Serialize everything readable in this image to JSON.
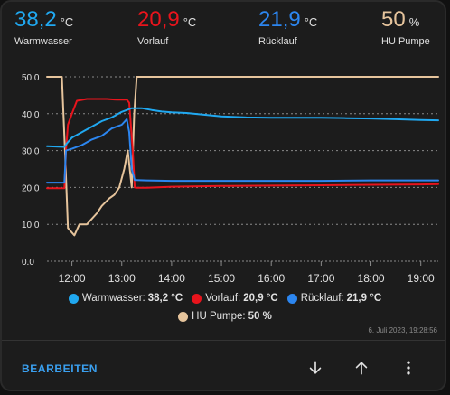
{
  "stats": [
    {
      "value": "38,2",
      "unit": "°C",
      "name": "Warmwasser",
      "color": "#20a8f0"
    },
    {
      "value": "20,9",
      "unit": "°C",
      "name": "Vorlauf",
      "color": "#e8141c"
    },
    {
      "value": "21,9",
      "unit": "°C",
      "name": "Rücklauf",
      "color": "#2c86f0"
    },
    {
      "value": "50",
      "unit": "%",
      "name": "HU Pumpe",
      "color": "#e6c49c"
    }
  ],
  "legend": [
    {
      "name": "Warmwasser:",
      "value": "38,2 °C",
      "color": "#20a8f0"
    },
    {
      "name": "Vorlauf:",
      "value": "20,9 °C",
      "color": "#e8141c"
    },
    {
      "name": "Rücklauf:",
      "value": "21,9 °C",
      "color": "#2c86f0"
    },
    {
      "name": "HU Pumpe:",
      "value": "50 %",
      "color": "#e6c49c"
    }
  ],
  "timestamp": "6. Juli 2023, 19:28:56",
  "footer": {
    "edit_label": "BEARBEITEN",
    "down_icon": "arrow-down-icon",
    "up_icon": "arrow-up-icon",
    "more_icon": "more-vertical-icon"
  },
  "chart_data": {
    "type": "line",
    "xlim": [
      11.5,
      19.35
    ],
    "ylim": [
      0,
      50
    ],
    "x_ticks": [
      12,
      13,
      14,
      15,
      16,
      17,
      18,
      19
    ],
    "x_tick_labels": [
      "12:00",
      "13:00",
      "14:00",
      "15:00",
      "16:00",
      "17:00",
      "18:00",
      "19:00"
    ],
    "y_ticks": [
      0,
      10,
      20,
      30,
      40,
      50
    ],
    "y_tick_labels": [
      "0.0",
      "10.0",
      "20.0",
      "30.0",
      "40.0",
      "50.0"
    ],
    "grid": true,
    "legend_position": "bottom",
    "series": [
      {
        "name": "HU Pumpe",
        "color": "#e6c49c",
        "x": [
          11.5,
          11.8,
          11.86,
          11.92,
          12.05,
          12.15,
          12.3,
          12.5,
          12.6,
          12.75,
          12.85,
          12.95,
          13.05,
          13.12,
          13.2,
          13.25,
          13.3,
          19.35
        ],
        "y": [
          50,
          50,
          30,
          9,
          7,
          10,
          10,
          13,
          15,
          17,
          18,
          20,
          25,
          30,
          20,
          40,
          50,
          50
        ]
      },
      {
        "name": "Vorlauf",
        "color": "#e8141c",
        "x": [
          11.5,
          11.85,
          11.88,
          11.92,
          12.0,
          12.1,
          12.3,
          12.5,
          12.7,
          12.9,
          13.1,
          13.15,
          13.22,
          13.26,
          13.3,
          13.5,
          14.0,
          15.0,
          16.0,
          17.0,
          18.0,
          19.0,
          19.35
        ],
        "y": [
          19.8,
          19.8,
          30,
          37,
          40,
          43.5,
          44,
          44,
          44,
          43.8,
          43.8,
          43,
          30,
          20,
          19.9,
          19.9,
          20.2,
          20.4,
          20.5,
          20.6,
          20.7,
          20.8,
          20.9
        ]
      },
      {
        "name": "Rücklauf",
        "color": "#2c86f0",
        "x": [
          11.5,
          11.85,
          11.88,
          12.0,
          12.2,
          12.4,
          12.6,
          12.8,
          13.0,
          13.1,
          13.15,
          13.2,
          13.26,
          13.3,
          13.5,
          14.0,
          15.0,
          16.0,
          17.0,
          18.0,
          19.0,
          19.35
        ],
        "y": [
          21.3,
          21.3,
          30,
          30.5,
          31.5,
          33,
          34,
          36,
          37,
          38.5,
          35,
          25,
          22,
          22,
          21.9,
          21.8,
          21.8,
          21.8,
          21.8,
          21.9,
          21.9,
          21.9
        ]
      },
      {
        "name": "Warmwasser",
        "color": "#20a8f0",
        "x": [
          11.5,
          11.85,
          11.9,
          12.0,
          12.2,
          12.4,
          12.6,
          12.8,
          13.0,
          13.2,
          13.4,
          13.6,
          13.8,
          14.0,
          14.3,
          14.6,
          15.0,
          15.5,
          16.0,
          16.5,
          17.0,
          17.5,
          18.0,
          18.5,
          19.0,
          19.35
        ],
        "y": [
          31.2,
          31.0,
          32,
          33.5,
          35,
          36.5,
          38,
          39,
          40.5,
          41.5,
          41.5,
          41,
          40.6,
          40.4,
          40.2,
          39.8,
          39.3,
          39.0,
          38.9,
          38.9,
          38.9,
          38.8,
          38.7,
          38.5,
          38.3,
          38.2
        ]
      }
    ]
  }
}
